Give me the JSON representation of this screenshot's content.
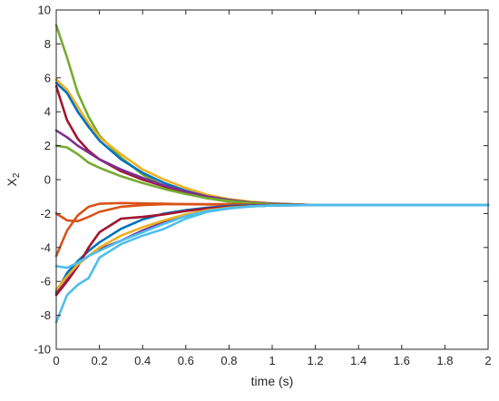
{
  "chart_data": {
    "type": "line",
    "title": "",
    "xlabel": "time (s)",
    "ylabel_main": "X",
    "ylabel_sub": "2",
    "xlim": [
      0,
      2
    ],
    "ylim": [
      -10,
      10
    ],
    "xticks": [
      0,
      0.2,
      0.4,
      0.6,
      0.8,
      1,
      1.2,
      1.4,
      1.6,
      1.8,
      2
    ],
    "xtick_labels": [
      "0",
      "0.2",
      "0.4",
      "0.6",
      "0.8",
      "1",
      "1.2",
      "1.4",
      "1.6",
      "1.8",
      "2"
    ],
    "yticks": [
      -10,
      -8,
      -6,
      -4,
      -2,
      0,
      2,
      4,
      6,
      8,
      10
    ],
    "ytick_labels": [
      "-10",
      "-8",
      "-6",
      "-4",
      "-2",
      "0",
      "2",
      "4",
      "6",
      "8",
      "10"
    ],
    "grid": false,
    "legend": "none",
    "series": [
      {
        "color": "#77AC30",
        "x": [
          0,
          0.05,
          0.1,
          0.15,
          0.2,
          0.3,
          0.4,
          0.5,
          0.6,
          0.7,
          0.8,
          0.9,
          1.0,
          1.2,
          1.5,
          2.0
        ],
        "y": [
          9.1,
          7.2,
          5.1,
          3.7,
          2.6,
          1.3,
          0.3,
          -0.4,
          -0.8,
          -1.1,
          -1.3,
          -1.4,
          -1.45,
          -1.5,
          -1.5,
          -1.5
        ]
      },
      {
        "color": "#EDB120",
        "x": [
          0,
          0.05,
          0.1,
          0.15,
          0.2,
          0.3,
          0.4,
          0.5,
          0.6,
          0.7,
          0.8,
          0.9,
          1.0,
          1.2,
          1.5,
          2.0
        ],
        "y": [
          5.9,
          5.3,
          4.3,
          3.3,
          2.5,
          1.5,
          0.6,
          0.0,
          -0.5,
          -0.9,
          -1.15,
          -1.3,
          -1.4,
          -1.5,
          -1.5,
          -1.5
        ]
      },
      {
        "color": "#0072BD",
        "x": [
          0,
          0.05,
          0.1,
          0.15,
          0.2,
          0.3,
          0.4,
          0.5,
          0.6,
          0.7,
          0.8,
          0.9,
          1.0,
          1.2,
          1.5,
          2.0
        ],
        "y": [
          5.7,
          5.1,
          4.0,
          3.1,
          2.3,
          1.2,
          0.4,
          -0.2,
          -0.65,
          -1.0,
          -1.2,
          -1.35,
          -1.42,
          -1.5,
          -1.5,
          -1.5
        ]
      },
      {
        "color": "#A2142F",
        "x": [
          0,
          0.05,
          0.1,
          0.15,
          0.2,
          0.3,
          0.4,
          0.5,
          0.6,
          0.7,
          0.8,
          0.9,
          1.0,
          1.2,
          1.5,
          2.0
        ],
        "y": [
          5.5,
          3.5,
          2.4,
          1.7,
          1.2,
          0.5,
          0.0,
          -0.4,
          -0.75,
          -1.05,
          -1.25,
          -1.38,
          -1.45,
          -1.5,
          -1.5,
          -1.5
        ]
      },
      {
        "color": "#7E2F8E",
        "x": [
          0,
          0.05,
          0.1,
          0.15,
          0.2,
          0.3,
          0.4,
          0.5,
          0.6,
          0.7,
          0.8,
          0.9,
          1.0,
          1.2,
          1.5,
          2.0
        ],
        "y": [
          2.9,
          2.5,
          2.0,
          1.6,
          1.2,
          0.6,
          0.1,
          -0.35,
          -0.7,
          -1.0,
          -1.2,
          -1.35,
          -1.42,
          -1.5,
          -1.5,
          -1.5
        ]
      },
      {
        "color": "#77AC30",
        "x": [
          0,
          0.05,
          0.1,
          0.15,
          0.2,
          0.3,
          0.4,
          0.5,
          0.6,
          0.7,
          0.8,
          0.9,
          1.0,
          1.2,
          1.5,
          2.0
        ],
        "y": [
          2.0,
          1.9,
          1.5,
          1.0,
          0.7,
          0.2,
          -0.2,
          -0.55,
          -0.85,
          -1.1,
          -1.25,
          -1.38,
          -1.45,
          -1.5,
          -1.5,
          -1.5
        ]
      },
      {
        "color": "#D95319",
        "x": [
          0,
          0.05,
          0.1,
          0.15,
          0.2,
          0.3,
          0.4,
          0.5,
          0.6,
          0.7,
          0.8,
          0.9,
          1.0,
          1.2,
          1.5,
          2.0
        ],
        "y": [
          -2.0,
          -2.4,
          -2.45,
          -2.2,
          -1.9,
          -1.6,
          -1.5,
          -1.45,
          -1.45,
          -1.45,
          -1.45,
          -1.48,
          -1.5,
          -1.5,
          -1.5,
          -1.5
        ]
      },
      {
        "color": "#D95319",
        "x": [
          0,
          0.05,
          0.1,
          0.15,
          0.2,
          0.3,
          0.4,
          0.5,
          0.6,
          0.7,
          0.8,
          0.9,
          1.0,
          1.2,
          1.5,
          2.0
        ],
        "y": [
          -4.5,
          -3.0,
          -2.1,
          -1.6,
          -1.42,
          -1.38,
          -1.4,
          -1.42,
          -1.45,
          -1.46,
          -1.48,
          -1.49,
          -1.5,
          -1.5,
          -1.5,
          -1.5
        ]
      },
      {
        "color": "#0072BD",
        "x": [
          0,
          0.05,
          0.1,
          0.15,
          0.2,
          0.3,
          0.4,
          0.5,
          0.6,
          0.7,
          0.8,
          0.9,
          1.0,
          1.2,
          1.5,
          2.0
        ],
        "y": [
          -6.7,
          -5.5,
          -4.8,
          -4.2,
          -3.7,
          -2.9,
          -2.35,
          -2.0,
          -1.8,
          -1.65,
          -1.55,
          -1.52,
          -1.5,
          -1.5,
          -1.5,
          -1.5
        ]
      },
      {
        "color": "#A2142F",
        "x": [
          0,
          0.05,
          0.1,
          0.15,
          0.2,
          0.3,
          0.4,
          0.5,
          0.6,
          0.7,
          0.8,
          0.9,
          1.0,
          1.2,
          1.5,
          2.0
        ],
        "y": [
          -6.8,
          -6.0,
          -5.1,
          -4.0,
          -3.1,
          -2.3,
          -2.2,
          -2.05,
          -1.85,
          -1.7,
          -1.6,
          -1.55,
          -1.5,
          -1.5,
          -1.5,
          -1.5
        ]
      },
      {
        "color": "#7E2F8E",
        "x": [
          0,
          0.05,
          0.1,
          0.15,
          0.2,
          0.3,
          0.4,
          0.5,
          0.6,
          0.7,
          0.8,
          0.9,
          1.0,
          1.2,
          1.5,
          2.0
        ],
        "y": [
          -6.6,
          -5.8,
          -5.0,
          -4.5,
          -4.1,
          -3.6,
          -3.0,
          -2.5,
          -2.1,
          -1.8,
          -1.65,
          -1.57,
          -1.52,
          -1.5,
          -1.5,
          -1.5
        ]
      },
      {
        "color": "#EDB120",
        "x": [
          0,
          0.05,
          0.1,
          0.15,
          0.2,
          0.3,
          0.4,
          0.5,
          0.6,
          0.7,
          0.8,
          0.9,
          1.0,
          1.2,
          1.5,
          2.0
        ],
        "y": [
          -6.5,
          -5.7,
          -5.0,
          -4.5,
          -4.0,
          -3.3,
          -2.8,
          -2.4,
          -2.05,
          -1.8,
          -1.65,
          -1.57,
          -1.52,
          -1.5,
          -1.5,
          -1.5
        ]
      },
      {
        "color": "#4DBEEE",
        "x": [
          0,
          0.05,
          0.1,
          0.15,
          0.2,
          0.3,
          0.4,
          0.5,
          0.6,
          0.7,
          0.8,
          0.9,
          1.0,
          1.2,
          1.5,
          2.0
        ],
        "y": [
          -8.4,
          -6.8,
          -6.2,
          -5.8,
          -4.6,
          -3.8,
          -3.3,
          -2.9,
          -2.3,
          -1.9,
          -1.7,
          -1.58,
          -1.53,
          -1.5,
          -1.5,
          -1.5
        ]
      },
      {
        "color": "#4DBEEE",
        "x": [
          0,
          0.05,
          0.1,
          0.15,
          0.2,
          0.3,
          0.4,
          0.5,
          0.6,
          0.7,
          0.8,
          0.9,
          1.0,
          1.2,
          1.5,
          2.0
        ],
        "y": [
          -5.1,
          -5.2,
          -4.9,
          -4.5,
          -4.2,
          -3.6,
          -3.1,
          -2.6,
          -2.15,
          -1.85,
          -1.68,
          -1.58,
          -1.52,
          -1.5,
          -1.5,
          -1.5
        ]
      }
    ]
  }
}
